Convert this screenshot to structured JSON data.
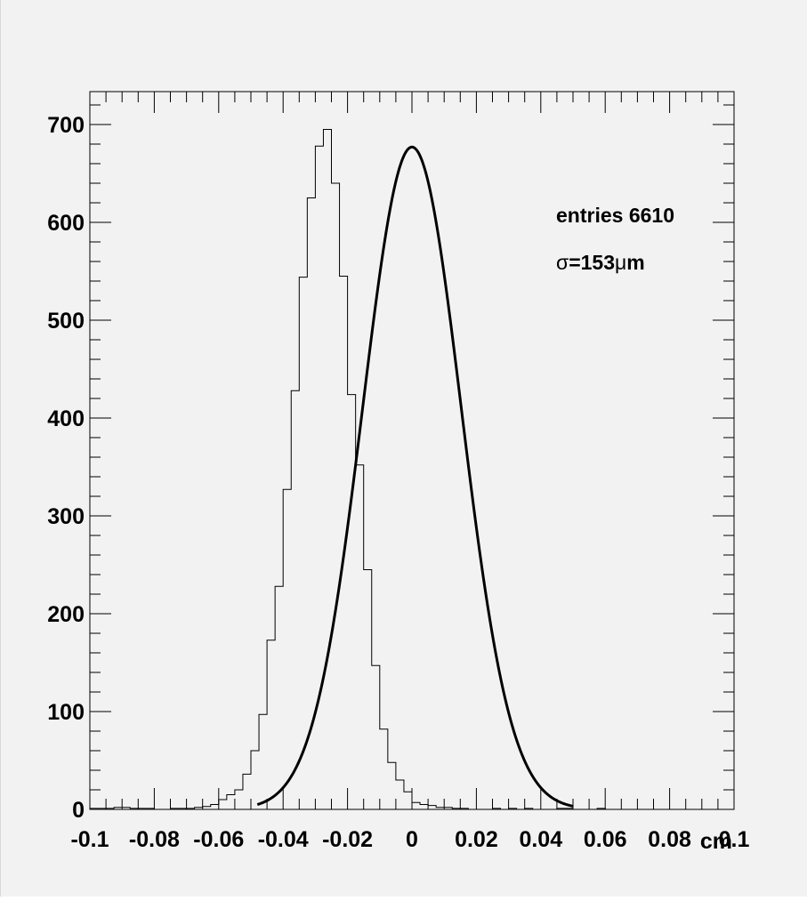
{
  "chart_data": {
    "type": "histogram",
    "title": "",
    "xlabel": "cm",
    "ylabel": "",
    "xlim": [
      -0.1,
      0.1
    ],
    "ylim": [
      0,
      735
    ],
    "grid": false,
    "x_tick_labels": [
      "-0.1",
      "-0.08",
      "-0.06",
      "-0.04",
      "-0.02",
      "0",
      "0.02",
      "0.04",
      "0.06",
      "0.08",
      "0.1"
    ],
    "x_tick_values": [
      -0.1,
      -0.08,
      -0.06,
      -0.04,
      -0.02,
      0,
      0.02,
      0.04,
      0.06,
      0.08,
      0.1
    ],
    "y_tick_labels": [
      "0",
      "100",
      "200",
      "300",
      "400",
      "500",
      "600",
      "700"
    ],
    "y_tick_values": [
      0,
      100,
      200,
      300,
      400,
      500,
      600,
      700
    ],
    "histogram": {
      "bin_low": -0.1,
      "bin_width": 0.0025,
      "counts": [
        1,
        1,
        1,
        2,
        2,
        1,
        1,
        1,
        0,
        0,
        1,
        1,
        1,
        2,
        3,
        5,
        10,
        15,
        20,
        36,
        60,
        97,
        173,
        228,
        327,
        428,
        544,
        625,
        678,
        695,
        640,
        545,
        424,
        352,
        245,
        147,
        82,
        48,
        30,
        18,
        7,
        5,
        4,
        2,
        2,
        1,
        1,
        0,
        0,
        0,
        1,
        0,
        1,
        0,
        1,
        0,
        0,
        0,
        1,
        1,
        0,
        0,
        0,
        1,
        0,
        0,
        0,
        0,
        0,
        0,
        0,
        0,
        0,
        0,
        0,
        0,
        0,
        0,
        0,
        0
      ]
    },
    "fit": {
      "function": "gaussian",
      "amplitude": 677,
      "mean": 0,
      "sigma": 0.0153,
      "x_range": [
        -0.048,
        0.05
      ]
    },
    "annotations": {
      "entries_label": "entries 6610",
      "sigma_symbol": "σ",
      "sigma_value": "=153",
      "sigma_unit_mu": "μ",
      "sigma_unit_m": "m"
    }
  }
}
